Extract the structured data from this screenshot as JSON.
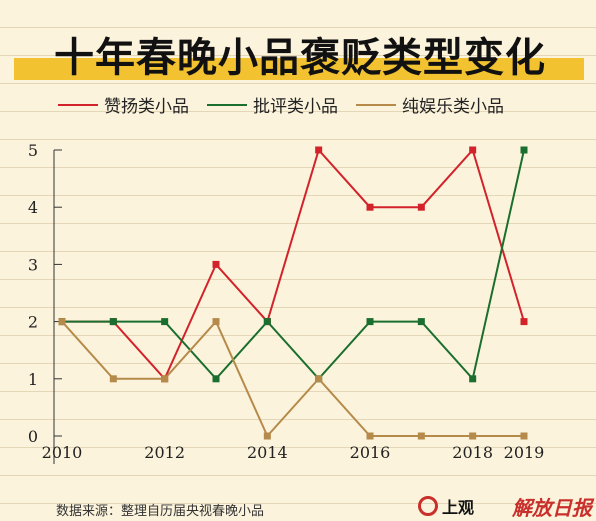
{
  "chart_data": {
    "type": "line",
    "title": "十年春晚小品褒贬类型变化",
    "x": [
      2010,
      2011,
      2012,
      2013,
      2014,
      2015,
      2016,
      2017,
      2018,
      2019
    ],
    "xticks": [
      "2010",
      "2012",
      "2014",
      "2016",
      "2018",
      "2019"
    ],
    "yticks": [
      "0",
      "1",
      "2",
      "3",
      "4",
      "5"
    ],
    "ylim": [
      0,
      5
    ],
    "series": [
      {
        "name": "赞扬类小品",
        "color": "#d2232a",
        "values": [
          2,
          2,
          1,
          3,
          2,
          5,
          4,
          4,
          5,
          2
        ]
      },
      {
        "name": "批评类小品",
        "color": "#1a6e2e",
        "values": [
          2,
          2,
          2,
          1,
          2,
          1,
          2,
          2,
          1,
          5
        ]
      },
      {
        "name": "纯娱乐类小品",
        "color": "#b58a4a",
        "values": [
          2,
          1,
          1,
          2,
          0,
          1,
          0,
          0,
          0,
          0
        ]
      }
    ],
    "legend_position": "top-left",
    "grid": false
  },
  "footer": {
    "source": "数据来源：整理自历届央视春晚小品",
    "logo_left": "上观",
    "logo_right": "解放日报"
  }
}
